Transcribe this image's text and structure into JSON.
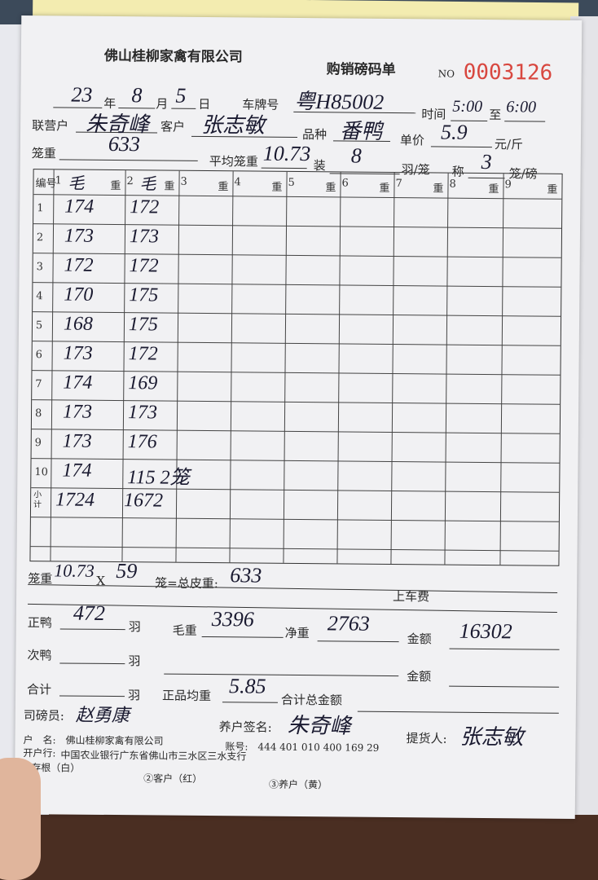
{
  "company": "佛山桂柳家禽有限公司",
  "form_title": "购销磅码单",
  "no_label": "NO",
  "serial": "0003126",
  "date": {
    "year": "23",
    "year_label": "年",
    "month": "8",
    "month_label": "月",
    "day": "5",
    "day_label": "日"
  },
  "plate": {
    "label": "车牌号",
    "value": "粤H85002"
  },
  "time": {
    "label": "时间",
    "from": "5:00",
    "to_label": "至",
    "to": "6:00"
  },
  "partner": {
    "label": "联营户",
    "value": "朱奇峰"
  },
  "customer": {
    "label": "客户",
    "value": "张志敏"
  },
  "variety": {
    "label": "品种",
    "value": "番鸭"
  },
  "unit_price": {
    "label": "单价",
    "value": "5.9",
    "unit": "元/斤"
  },
  "cage_weight": {
    "label": "笼重",
    "value": "633"
  },
  "avg_cage": {
    "label": "平均笼重",
    "value": "10.73"
  },
  "per_cage": {
    "label": "装",
    "value": "8",
    "unit": "羽/笼"
  },
  "weigh": {
    "label": "称",
    "value": "3",
    "unit": "笼/磅"
  },
  "table": {
    "no_header": "编号",
    "col_headers": [
      {
        "num": "1",
        "mark": "毛",
        "unit": "重"
      },
      {
        "num": "2",
        "mark": "毛",
        "unit": "重"
      },
      {
        "num": "3",
        "mark": "",
        "unit": "重"
      },
      {
        "num": "4",
        "mark": "",
        "unit": "重"
      },
      {
        "num": "5",
        "mark": "",
        "unit": "重"
      },
      {
        "num": "6",
        "mark": "",
        "unit": "重"
      },
      {
        "num": "7",
        "mark": "",
        "unit": "重"
      },
      {
        "num": "8",
        "mark": "",
        "unit": "重"
      },
      {
        "num": "9",
        "mark": "",
        "unit": "重"
      }
    ],
    "rows": [
      {
        "no": "1",
        "c1": "174",
        "c2": "172"
      },
      {
        "no": "2",
        "c1": "173",
        "c2": "173"
      },
      {
        "no": "3",
        "c1": "172",
        "c2": "172"
      },
      {
        "no": "4",
        "c1": "170",
        "c2": "175"
      },
      {
        "no": "5",
        "c1": "168",
        "c2": "175"
      },
      {
        "no": "6",
        "c1": "173",
        "c2": "172"
      },
      {
        "no": "7",
        "c1": "174",
        "c2": "169"
      },
      {
        "no": "8",
        "c1": "173",
        "c2": "173"
      },
      {
        "no": "9",
        "c1": "173",
        "c2": "176"
      },
      {
        "no": "10",
        "c1": "174",
        "c2": "115 2笼"
      }
    ],
    "subtotal": {
      "label": "小计",
      "c1": "1724",
      "c2": "1672"
    }
  },
  "calc": {
    "label1": "笼重",
    "avg": "10.73",
    "x": "X",
    "cages": "59",
    "label2": "笼=总皮重:",
    "total_tare": "633",
    "loading_fee": "上车费"
  },
  "good_duck": {
    "label": "正鸭",
    "value": "472",
    "unit": "羽"
  },
  "gross": {
    "label": "毛重",
    "value": "3396"
  },
  "net": {
    "label": "净重",
    "value": "2763"
  },
  "amount1": {
    "label": "金额",
    "value": "16302"
  },
  "second_duck": {
    "label": "次鸭",
    "unit": "羽"
  },
  "amount2": {
    "label": "金额"
  },
  "total": {
    "label": "合计",
    "unit": "羽"
  },
  "avg_weight": {
    "label": "正品均重",
    "value": "5.85"
  },
  "total_amount": {
    "label": "合计总金额"
  },
  "weigher": {
    "label": "司磅员:",
    "signature": "赵勇康"
  },
  "farmer_sign": {
    "label": "养户签名:",
    "signature": "朱奇峰"
  },
  "pickup": {
    "label": "提货人:",
    "signature": "张志敏"
  },
  "bank": {
    "account_name_label": "户　名:",
    "account_name": "佛山桂柳家禽有限公司",
    "bank_label": "开户行:",
    "bank_name": "中国农业银行广东省佛山市三水区三水支行",
    "account_no_label": "账号:",
    "account_no": "444 401 010 400 169 29"
  },
  "copies": [
    "①存根（白）",
    "②客户（红）",
    "③养户（黄）"
  ],
  "colors": {
    "serial": "#d8473f",
    "ink": "#1a1a30",
    "paper": "#f1f1f3"
  }
}
